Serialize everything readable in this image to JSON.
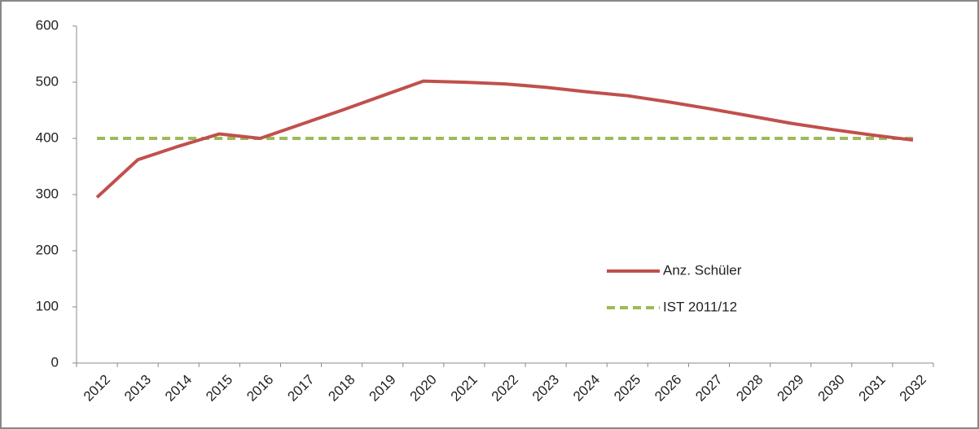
{
  "chart_data": {
    "type": "line",
    "categories": [
      "2012",
      "2013",
      "2014",
      "2015",
      "2016",
      "2017",
      "2018",
      "2019",
      "2020",
      "2021",
      "2022",
      "2023",
      "2024",
      "2025",
      "2026",
      "2027",
      "2028",
      "2029",
      "2030",
      "2031",
      "2032"
    ],
    "series": [
      {
        "name": "Anz. Schüler",
        "color": "#c0504d",
        "dash": false,
        "values": [
          295,
          362,
          386,
          408,
          400,
          425,
          450,
          476,
          502,
          500,
          497,
          491,
          483,
          476,
          465,
          453,
          440,
          427,
          416,
          406,
          397
        ]
      },
      {
        "name": "IST 2011/12",
        "color": "#9bbb59",
        "dash": true,
        "values": [
          400,
          400,
          400,
          400,
          400,
          400,
          400,
          400,
          400,
          400,
          400,
          400,
          400,
          400,
          400,
          400,
          400,
          400,
          400,
          400,
          400
        ]
      }
    ],
    "ylim": [
      0,
      600
    ],
    "yticks": [
      0,
      100,
      200,
      300,
      400,
      500,
      600
    ],
    "grid": false
  }
}
